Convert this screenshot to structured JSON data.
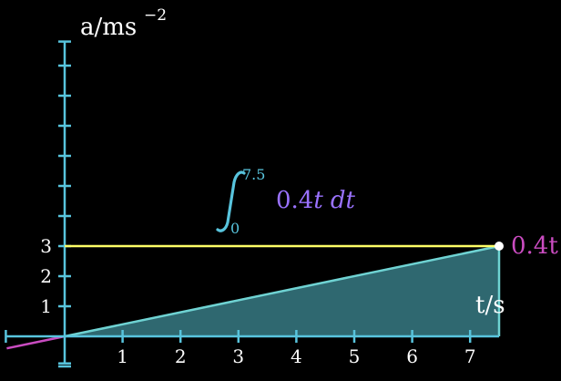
{
  "colors": {
    "background": "#000000",
    "axis": "#58c4dd",
    "area_fill": "#2f6870",
    "area_edge": "#6fd3d3",
    "integral_sign": "#58c4dd",
    "integrand": "#9a72ff",
    "function_line": "#ca4cc1",
    "level_line": "#ffff66",
    "label_text": "#ffffff"
  },
  "chart_data": {
    "type": "area",
    "xlabel": "t/s",
    "ylabel": "a/ms",
    "ylabel_exponent": "−2",
    "xlim": [
      -1,
      7.5
    ],
    "ylim": [
      -0.9,
      9.8
    ],
    "x_ticks": [
      1,
      2,
      3,
      4,
      5,
      6,
      7
    ],
    "y_ticks": [
      1,
      2,
      3
    ],
    "y_tick_marks": [
      -1,
      1,
      2,
      3,
      4,
      5,
      6,
      7,
      8,
      9
    ],
    "function": {
      "label": "0.4t",
      "slope": 0.4,
      "x_range": [
        -1,
        7.5
      ]
    },
    "shaded_region": {
      "x_from": 0,
      "x_to": 7.5
    },
    "level_line": {
      "y": 3,
      "x_from": 0,
      "x_to": 7.5
    },
    "endpoint": {
      "x": 7.5,
      "y": 3
    },
    "annotation": {
      "integral_upper": "7.5",
      "integral_lower": "0",
      "integrand": "0.4",
      "integrand_var": "t",
      "differential": "dt"
    }
  }
}
